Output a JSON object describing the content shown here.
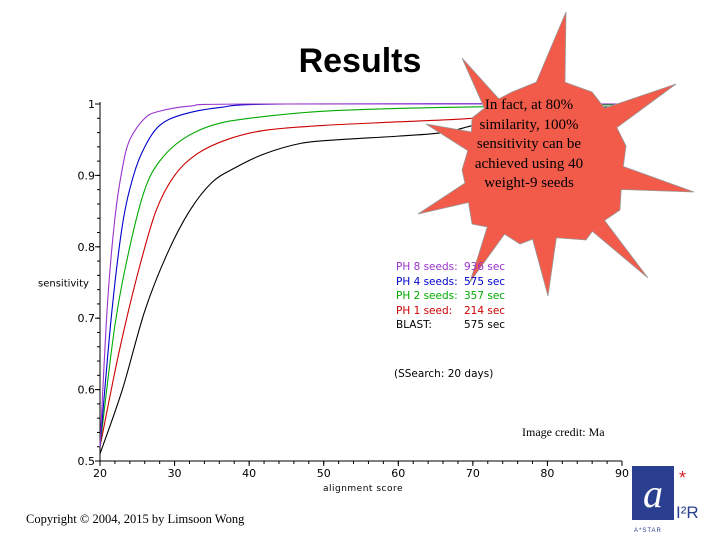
{
  "page": {
    "title": "Results",
    "callout": "In fact, at 80% similarity, 100% sensitivity can be achieved using 40 weight-9 seeds",
    "ssearch_note": "(SSearch:  20 days)",
    "image_credit": "Image credit: Ma",
    "copyright": "Copyright © 2004, 2015 by Limsoon Wong",
    "logo_text": "I²R",
    "logo_subtext": "A*STAR"
  },
  "colors": {
    "ph8": "#9933cc",
    "ph4": "#0000cc",
    "ph2": "#00aa00",
    "ph1": "#cc0000",
    "blast": "#000000",
    "callout_fill": "#f25a4a",
    "logo_blue": "#2a3f8f"
  },
  "legend": [
    {
      "label": "PH 8 seeds:",
      "value": "936 sec",
      "color": "#9933cc"
    },
    {
      "label": "PH 4 seeds:",
      "value": "575 sec",
      "color": "#0000cc"
    },
    {
      "label": "PH 2 seeds:",
      "value": "357 sec",
      "color": "#00aa00"
    },
    {
      "label": "PH 1 seed:",
      "value": "214 sec",
      "color": "#cc0000"
    },
    {
      "label": "BLAST:",
      "value": "575 sec",
      "color": "#000000"
    }
  ],
  "chart_data": {
    "type": "line",
    "xlabel": "alignment score",
    "ylabel": "sensitivity",
    "xlim": [
      20,
      90
    ],
    "ylim": [
      0.5,
      1
    ],
    "x_ticks": [
      "20",
      "30",
      "40",
      "50",
      "60",
      "70",
      "80",
      "90"
    ],
    "y_ticks": [
      "0.5",
      "0.6",
      "0.7",
      "0.8",
      "0.9",
      "1"
    ],
    "series": [
      {
        "key": "ph8",
        "color": "#9933cc",
        "points": [
          [
            20,
            0.52
          ],
          [
            21,
            0.72
          ],
          [
            22,
            0.84
          ],
          [
            23,
            0.91
          ],
          [
            24,
            0.95
          ],
          [
            26,
            0.98
          ],
          [
            28,
            0.99
          ],
          [
            32,
            0.997
          ],
          [
            40,
            1.0
          ],
          [
            90,
            1.0
          ]
        ]
      },
      {
        "key": "ph4",
        "color": "#0000cc",
        "points": [
          [
            20,
            0.52
          ],
          [
            21.5,
            0.7
          ],
          [
            23,
            0.83
          ],
          [
            24.5,
            0.9
          ],
          [
            26,
            0.94
          ],
          [
            28,
            0.97
          ],
          [
            31,
            0.985
          ],
          [
            36,
            0.995
          ],
          [
            45,
            1.0
          ],
          [
            90,
            1.0
          ]
        ]
      },
      {
        "key": "ph2",
        "color": "#00aa00",
        "points": [
          [
            20,
            0.52
          ],
          [
            22,
            0.69
          ],
          [
            24,
            0.8
          ],
          [
            26,
            0.88
          ],
          [
            28,
            0.92
          ],
          [
            31,
            0.95
          ],
          [
            35,
            0.97
          ],
          [
            40,
            0.98
          ],
          [
            50,
            0.99
          ],
          [
            65,
            0.995
          ],
          [
            90,
            0.999
          ]
        ]
      },
      {
        "key": "ph1",
        "color": "#cc0000",
        "points": [
          [
            20,
            0.52
          ],
          [
            22.5,
            0.65
          ],
          [
            25,
            0.76
          ],
          [
            27.5,
            0.85
          ],
          [
            30,
            0.9
          ],
          [
            33,
            0.93
          ],
          [
            37,
            0.95
          ],
          [
            42,
            0.963
          ],
          [
            50,
            0.97
          ],
          [
            60,
            0.975
          ],
          [
            70,
            0.98
          ],
          [
            80,
            0.99
          ],
          [
            90,
            0.995
          ]
        ]
      },
      {
        "key": "blast",
        "color": "#000000",
        "points": [
          [
            20,
            0.51
          ],
          [
            23,
            0.6
          ],
          [
            26,
            0.71
          ],
          [
            29,
            0.79
          ],
          [
            32,
            0.85
          ],
          [
            35,
            0.89
          ],
          [
            38,
            0.91
          ],
          [
            42,
            0.93
          ],
          [
            47,
            0.945
          ],
          [
            52,
            0.95
          ],
          [
            60,
            0.955
          ],
          [
            66,
            0.96
          ],
          [
            70,
            0.97
          ],
          [
            74,
            0.98
          ],
          [
            80,
            0.99
          ],
          [
            90,
            0.997
          ]
        ]
      }
    ]
  }
}
